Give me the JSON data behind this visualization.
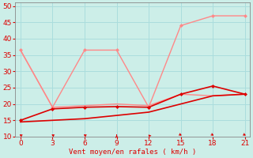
{
  "xlabel": "Vent moyen/en rafales ( km/h )",
  "bg_color": "#cceee8",
  "grid_color": "#aadddd",
  "x_ticks": [
    0,
    3,
    6,
    9,
    12,
    15,
    18,
    21
  ],
  "ylim": [
    10,
    51
  ],
  "xlim": [
    -0.5,
    21.5
  ],
  "yticks": [
    10,
    15,
    20,
    25,
    30,
    35,
    40,
    45,
    50
  ],
  "line1_dark": {
    "x": [
      0,
      3,
      6,
      9,
      12,
      15,
      18,
      21
    ],
    "y": [
      14.5,
      15.0,
      15.5,
      16.5,
      17.5,
      20.0,
      22.5,
      23.0
    ],
    "color": "#dd0000",
    "lw": 1.2
  },
  "line2_dark": {
    "x": [
      0,
      3,
      6,
      9,
      12,
      15,
      18,
      21
    ],
    "y": [
      15.0,
      18.5,
      19.0,
      19.2,
      19.0,
      23.0,
      25.5,
      23.0
    ],
    "color": "#dd0000",
    "lw": 1.2,
    "marker": "D",
    "ms": 2.5
  },
  "line3_light": {
    "x": [
      0,
      3,
      6,
      9,
      12,
      15,
      18,
      21
    ],
    "y": [
      36.5,
      19.0,
      36.5,
      36.5,
      19.0,
      44.0,
      47.0,
      47.0
    ],
    "color": "#ff8888",
    "lw": 1.0,
    "marker": "D",
    "ms": 2.5
  },
  "line4_light": {
    "x": [
      0,
      3,
      6,
      9,
      12,
      15,
      18,
      21
    ],
    "y": [
      36.5,
      19.0,
      19.5,
      20.0,
      19.5,
      23.0,
      22.5,
      23.0
    ],
    "color": "#ff8888",
    "lw": 1.0
  },
  "arrows_x": [
    0,
    3,
    6,
    9,
    12,
    15,
    18,
    21
  ],
  "arrow_rotations": [
    45,
    45,
    45,
    0,
    30,
    225,
    225,
    225
  ]
}
